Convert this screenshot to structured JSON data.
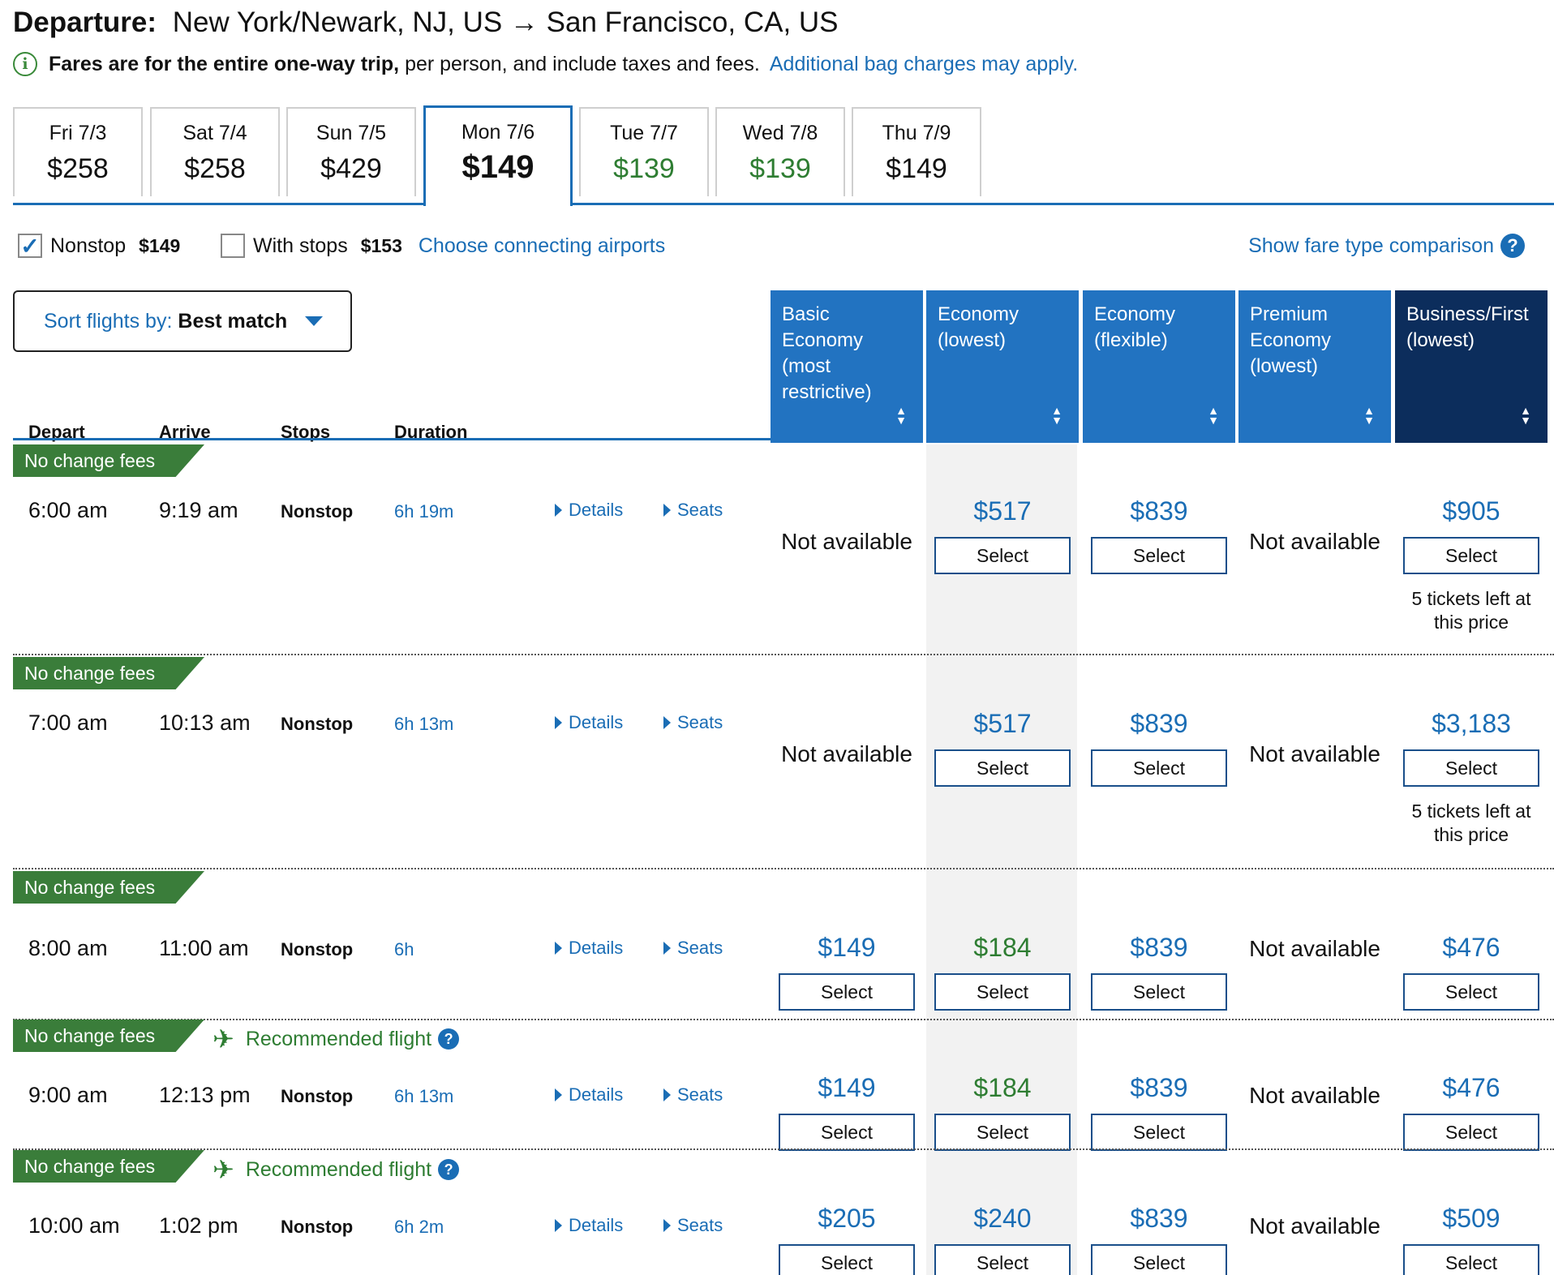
{
  "header": {
    "title_label": "Departure:",
    "route": "New York/Newark, NJ, US → San Francisco, CA, US",
    "info_bold": "Fares are for the entire one-way trip,",
    "info_rest": "per person, and include taxes and fees.",
    "info_link": "Additional bag charges may apply.",
    "info_icon": "i"
  },
  "date_tabs": [
    {
      "day": "Fri 7/3",
      "price": "$258",
      "color": "#111111"
    },
    {
      "day": "Sat 7/4",
      "price": "$258",
      "color": "#111111"
    },
    {
      "day": "Sun 7/5",
      "price": "$429",
      "color": "#111111"
    },
    {
      "day": "Mon 7/6",
      "price": "$149",
      "color": "#111111",
      "selected": true
    },
    {
      "day": "Tue 7/7",
      "price": "$139",
      "color": "#2e7d32"
    },
    {
      "day": "Wed 7/8",
      "price": "$139",
      "color": "#2e7d32"
    },
    {
      "day": "Thu 7/9",
      "price": "$149",
      "color": "#111111"
    }
  ],
  "filters": {
    "nonstop_label": "Nonstop",
    "nonstop_price": "$149",
    "nonstop_checked": "✓",
    "stops_label": "With stops",
    "stops_price": "$153",
    "connecting_link": "Choose connecting airports",
    "fare_compare_link": "Show fare type comparison",
    "help_glyph": "?"
  },
  "sort": {
    "label": "Sort flights by:",
    "value": "Best match"
  },
  "columns": {
    "depart": "Depart",
    "arrive": "Arrive",
    "stops": "Stops",
    "duration": "Duration"
  },
  "fare_columns": [
    {
      "label": "Basic Economy (most restrictive)"
    },
    {
      "label": "Economy (lowest)"
    },
    {
      "label": "Economy (flexible)"
    },
    {
      "label": "Premium Economy (lowest)"
    },
    {
      "label": "Business/First (lowest)"
    }
  ],
  "labels": {
    "no_change_fees": "No change fees",
    "recommended": "Recommended flight",
    "details": "Details",
    "seats": "Seats",
    "select": "Select",
    "not_available": "Not available",
    "tickets_left": "5 tickets left at this price",
    "sort_up": "▲",
    "sort_down": "▼",
    "plane": "✈"
  },
  "colors": {
    "accent": "#1a6db5",
    "green": "#2e7d32",
    "header_blue": "#2273c1",
    "header_dark": "#0c2d5c"
  },
  "flights": [
    {
      "depart": "6:00 am",
      "arrive": "9:19 am",
      "stops": "Nonstop",
      "duration": "6h 19m",
      "basic": "Not available",
      "econ": "$517",
      "flex": "$839",
      "prem": "Not available",
      "biz": "$905",
      "biz_note": true
    },
    {
      "depart": "7:00 am",
      "arrive": "10:13 am",
      "stops": "Nonstop",
      "duration": "6h 13m",
      "basic": "Not available",
      "econ": "$517",
      "flex": "$839",
      "prem": "Not available",
      "biz": "$3,183",
      "biz_note": true
    },
    {
      "depart": "8:00 am",
      "arrive": "11:00 am",
      "stops": "Nonstop",
      "duration": "6h",
      "basic": "$149",
      "econ": "$184",
      "econ_green": true,
      "flex": "$839",
      "prem": "Not available",
      "biz": "$476"
    },
    {
      "depart": "9:00 am",
      "arrive": "12:13 pm",
      "stops": "Nonstop",
      "duration": "6h 13m",
      "basic": "$149",
      "econ": "$184",
      "econ_green": true,
      "flex": "$839",
      "prem": "Not available",
      "biz": "$476",
      "recommended": true
    },
    {
      "depart": "10:00 am",
      "arrive": "1:02 pm",
      "stops": "Nonstop",
      "duration": "6h 2m",
      "basic": "$205",
      "econ": "$240",
      "flex": "$839",
      "prem": "Not available",
      "biz": "$509",
      "recommended": true
    }
  ]
}
